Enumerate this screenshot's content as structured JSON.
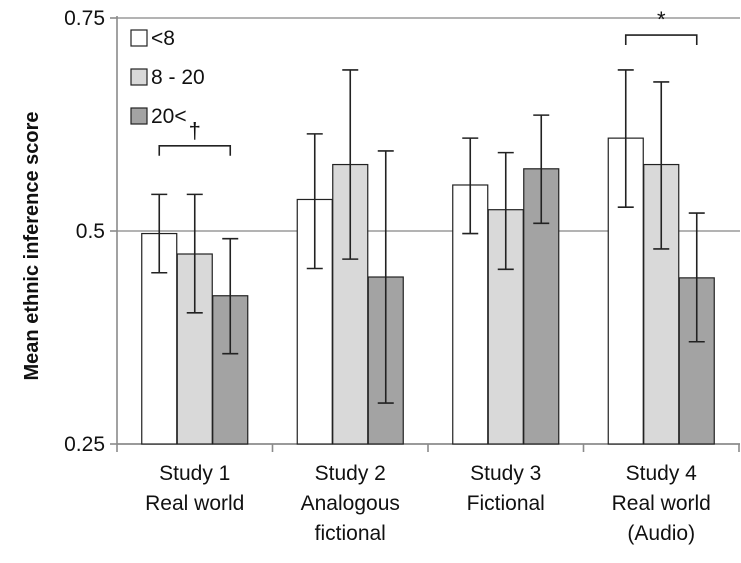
{
  "chart_data": {
    "type": "bar",
    "ylabel": "Mean ethnic inference score",
    "ylim": [
      0.25,
      0.75
    ],
    "yticks": [
      "0.25",
      "0.5",
      "0.75"
    ],
    "grid": true,
    "legend_position": "top-left",
    "categories": [
      [
        "Study 1",
        "Real world"
      ],
      [
        "Study 2",
        "Analogous",
        "fictional"
      ],
      [
        "Study 3",
        "Fictional"
      ],
      [
        "Study 4",
        "Real world",
        "(Audio)"
      ]
    ],
    "series": [
      {
        "name": "<8",
        "color": "#ffffff",
        "values": [
          0.497,
          0.537,
          0.554,
          0.609
        ],
        "err_low": [
          0.451,
          0.456,
          0.497,
          0.528
        ],
        "err_high": [
          0.543,
          0.614,
          0.609,
          0.689
        ]
      },
      {
        "name": "8 - 20",
        "color": "#d9d9d9",
        "values": [
          0.473,
          0.578,
          0.525,
          0.578
        ],
        "err_low": [
          0.404,
          0.467,
          0.455,
          0.479
        ],
        "err_high": [
          0.543,
          0.689,
          0.592,
          0.675
        ]
      },
      {
        "name": "20<",
        "color": "#a3a3a3",
        "values": [
          0.424,
          0.446,
          0.573,
          0.445
        ],
        "err_low": [
          0.356,
          0.298,
          0.509,
          0.37
        ],
        "err_high": [
          0.491,
          0.594,
          0.636,
          0.521
        ]
      }
    ],
    "annotations": [
      {
        "label": "†",
        "category": 0,
        "from_series": 0,
        "to_series": 2,
        "level": 0.6
      },
      {
        "label": "*",
        "category": 3,
        "from_series": 0,
        "to_series": 2,
        "level": 0.73
      }
    ]
  }
}
